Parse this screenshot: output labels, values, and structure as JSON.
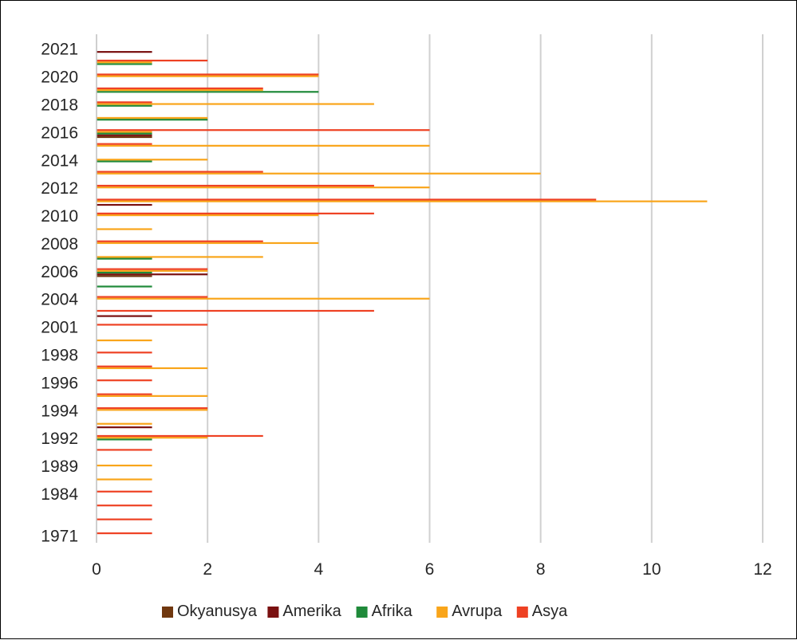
{
  "chart_data": {
    "type": "bar",
    "orientation": "horizontal",
    "title": "",
    "xlabel": "",
    "ylabel": "",
    "xlim": [
      0,
      12
    ],
    "x_ticks": [
      0,
      2,
      4,
      6,
      8,
      10,
      12
    ],
    "grid": "vertical",
    "legend_position": "bottom",
    "categories": [
      "1971",
      "",
      "",
      "1984",
      "",
      "1989",
      "",
      "1992",
      "",
      "1994",
      "",
      "1996",
      "",
      "1998",
      "",
      "2001",
      "",
      "2004",
      "",
      "2006",
      "",
      "2008",
      "",
      "2010",
      "",
      "2012",
      "",
      "2014",
      "",
      "2016",
      "",
      "2018",
      "",
      "2020",
      "",
      "2021"
    ],
    "series": [
      {
        "name": "Okyanusya",
        "color": "#70380F",
        "values": [
          0,
          0,
          0,
          0,
          0,
          0,
          0,
          0,
          0,
          0,
          0,
          0,
          0,
          0,
          0,
          0,
          0,
          0,
          0,
          1,
          0,
          0,
          0,
          0,
          0,
          0,
          0,
          0,
          0,
          1,
          0,
          0,
          0,
          0,
          0,
          0
        ]
      },
      {
        "name": "Amerika",
        "color": "#7A1010",
        "values": [
          0,
          0,
          0,
          0,
          0,
          0,
          0,
          0,
          1,
          0,
          0,
          0,
          0,
          0,
          0,
          0,
          1,
          0,
          0,
          2,
          0,
          0,
          0,
          0,
          1,
          0,
          0,
          0,
          0,
          1,
          0,
          0,
          0,
          0,
          0,
          1
        ]
      },
      {
        "name": "Afrika",
        "color": "#1F8A3A",
        "values": [
          0,
          0,
          0,
          0,
          0,
          0,
          0,
          1,
          0,
          0,
          0,
          0,
          0,
          0,
          0,
          0,
          0,
          0,
          1,
          1,
          1,
          0,
          0,
          0,
          0,
          0,
          0,
          1,
          0,
          1,
          2,
          1,
          4,
          0,
          1,
          0
        ]
      },
      {
        "name": "Avrupa",
        "color": "#F9A51A",
        "values": [
          0,
          0,
          0,
          0,
          1,
          1,
          0,
          2,
          1,
          2,
          2,
          0,
          2,
          0,
          1,
          0,
          0,
          6,
          0,
          2,
          3,
          4,
          1,
          4,
          11,
          6,
          8,
          2,
          6,
          1,
          2,
          5,
          3,
          4,
          1,
          0
        ]
      },
      {
        "name": "Asya",
        "color": "#EE4123",
        "values": [
          1,
          1,
          1,
          1,
          0,
          0,
          1,
          3,
          0,
          2,
          1,
          1,
          1,
          1,
          0,
          2,
          5,
          2,
          0,
          2,
          0,
          3,
          0,
          5,
          9,
          5,
          3,
          0,
          1,
          6,
          0,
          1,
          3,
          4,
          2,
          0
        ]
      }
    ],
    "y_tick_labels": [
      "1971",
      "1984",
      "1989",
      "1992",
      "1994",
      "1996",
      "1998",
      "2001",
      "2004",
      "2006",
      "2008",
      "2010",
      "2012",
      "2014",
      "2016",
      "2018",
      "2020",
      "2021"
    ]
  }
}
